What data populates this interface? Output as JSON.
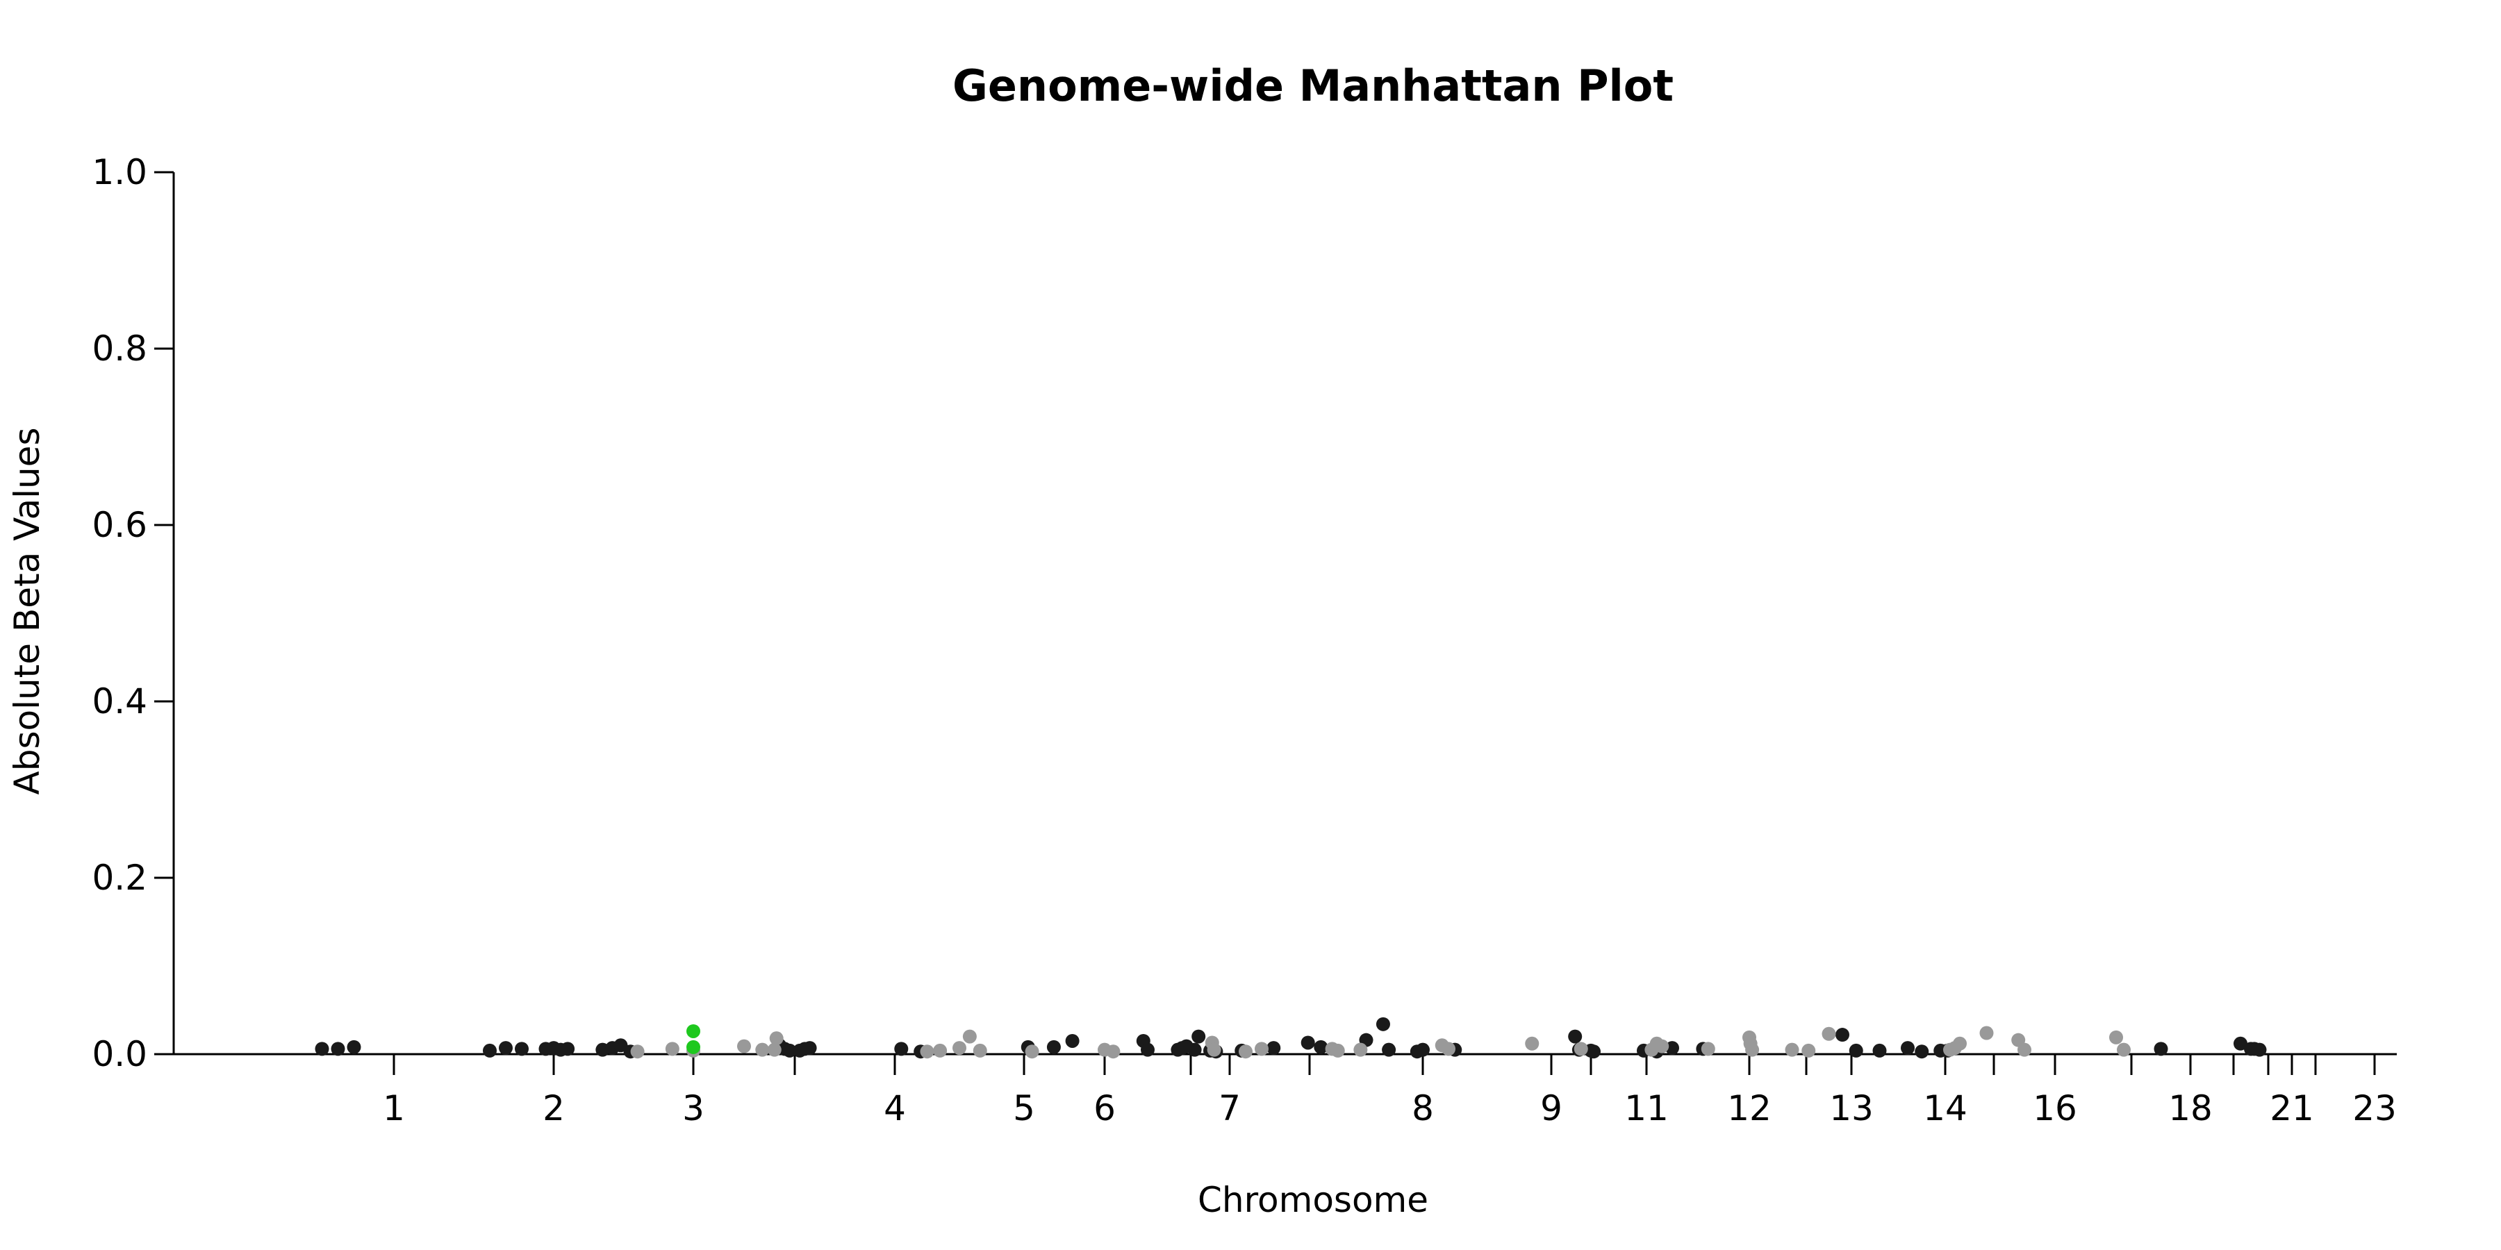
{
  "chart_data": {
    "type": "scatter",
    "title": "Genome-wide Manhattan Plot",
    "xlabel": "Chromosome",
    "ylabel": "Absolute Beta Values",
    "ylim": [
      0,
      1.0
    ],
    "yticks": [
      "0.0",
      "0.2",
      "0.4",
      "0.6",
      "0.8",
      "1.0"
    ],
    "xticks": [
      "1",
      "2",
      "3",
      "",
      "4",
      "5",
      "6",
      "",
      "7",
      "",
      "8",
      "9",
      "",
      "11",
      "12",
      "",
      "13",
      "14",
      "",
      "16",
      "",
      "18",
      "",
      "",
      "21",
      "",
      "23"
    ],
    "grid": false,
    "colors": {
      "dark": "#1a1a1a",
      "light": "#999999",
      "highlight": "#1ec81e"
    },
    "series": [
      {
        "color": "dark",
        "points": [
          [
            -0.45,
            0.006
          ],
          [
            -0.35,
            0.006
          ],
          [
            -0.25,
            0.008
          ],
          [
            0.6,
            0.004
          ],
          [
            0.7,
            0.007
          ],
          [
            0.8,
            0.006
          ],
          [
            0.95,
            0.006
          ],
          [
            1.0,
            0.007
          ],
          [
            1.05,
            0.005
          ],
          [
            1.1,
            0.006
          ],
          [
            1.35,
            0.005
          ],
          [
            1.42,
            0.007
          ],
          [
            1.48,
            0.01
          ],
          [
            1.55,
            0.003
          ],
          [
            2.85,
            0.01
          ],
          [
            2.9,
            0.006
          ],
          [
            2.95,
            0.004
          ],
          [
            3.05,
            0.004
          ],
          [
            3.1,
            0.006
          ],
          [
            3.15,
            0.007
          ],
          [
            4.05,
            0.006
          ],
          [
            4.2,
            0.003
          ],
          [
            5.05,
            0.008
          ],
          [
            5.37,
            0.008
          ],
          [
            5.6,
            0.015
          ],
          [
            6.45,
            0.015
          ],
          [
            6.5,
            0.005
          ],
          [
            6.85,
            0.005
          ],
          [
            6.9,
            0.007
          ],
          [
            6.95,
            0.009
          ],
          [
            7.1,
            0.005
          ],
          [
            7.2,
            0.02
          ],
          [
            7.5,
            0.004
          ],
          [
            7.65,
            0.003
          ],
          [
            8.15,
            0.004
          ],
          [
            8.55,
            0.007
          ],
          [
            8.98,
            0.013
          ],
          [
            9.1,
            0.008
          ],
          [
            9.5,
            0.016
          ],
          [
            9.65,
            0.034
          ],
          [
            9.7,
            0.005
          ],
          [
            9.95,
            0.003
          ],
          [
            10.0,
            0.005
          ],
          [
            10.25,
            0.005
          ],
          [
            11.6,
            0.02
          ],
          [
            11.7,
            0.005
          ],
          [
            12.0,
            0.004
          ],
          [
            12.05,
            0.003
          ],
          [
            12.95,
            0.004
          ],
          [
            13.1,
            0.003
          ],
          [
            13.25,
            0.007
          ],
          [
            13.55,
            0.006
          ],
          [
            15.8,
            0.022
          ],
          [
            16.05,
            0.004
          ],
          [
            16.3,
            0.004
          ],
          [
            16.6,
            0.007
          ],
          [
            16.75,
            0.003
          ],
          [
            16.95,
            0.004
          ],
          [
            17.05,
            0.004
          ],
          [
            20.5,
            0.006
          ],
          [
            22.2,
            0.012
          ],
          [
            22.5,
            0.006
          ],
          [
            22.6,
            0.006
          ],
          [
            22.75,
            0.005
          ]
        ]
      },
      {
        "color": "light",
        "points": [
          [
            1.6,
            0.003
          ],
          [
            1.85,
            0.006
          ],
          [
            2.0,
            0.004
          ],
          [
            2.5,
            0.009
          ],
          [
            2.68,
            0.005
          ],
          [
            2.82,
            0.018
          ],
          [
            2.8,
            0.005
          ],
          [
            4.25,
            0.003
          ],
          [
            4.35,
            0.004
          ],
          [
            4.5,
            0.007
          ],
          [
            4.58,
            0.02
          ],
          [
            4.66,
            0.004
          ],
          [
            5.1,
            0.003
          ],
          [
            6.0,
            0.005
          ],
          [
            6.1,
            0.003
          ],
          [
            7.55,
            0.013
          ],
          [
            7.6,
            0.005
          ],
          [
            8.2,
            0.003
          ],
          [
            8.4,
            0.006
          ],
          [
            9.2,
            0.006
          ],
          [
            9.25,
            0.004
          ],
          [
            9.45,
            0.005
          ],
          [
            10.15,
            0.01
          ],
          [
            10.2,
            0.006
          ],
          [
            10.85,
            0.012
          ],
          [
            11.75,
            0.006
          ],
          [
            13.05,
            0.005
          ],
          [
            13.1,
            0.012
          ],
          [
            13.15,
            0.009
          ],
          [
            13.6,
            0.006
          ],
          [
            14.0,
            0.019
          ],
          [
            14.02,
            0.012
          ],
          [
            14.05,
            0.005
          ],
          [
            14.75,
            0.005
          ],
          [
            15.05,
            0.004
          ],
          [
            15.5,
            0.023
          ],
          [
            17.1,
            0.005
          ],
          [
            17.2,
            0.007
          ],
          [
            17.3,
            0.012
          ],
          [
            17.85,
            0.024
          ],
          [
            18.4,
            0.016
          ],
          [
            18.5,
            0.005
          ],
          [
            19.8,
            0.019
          ],
          [
            19.9,
            0.005
          ]
        ]
      },
      {
        "color": "highlight",
        "points": [
          [
            2.0,
            0.026
          ],
          [
            2.0,
            0.008
          ]
        ]
      }
    ]
  }
}
